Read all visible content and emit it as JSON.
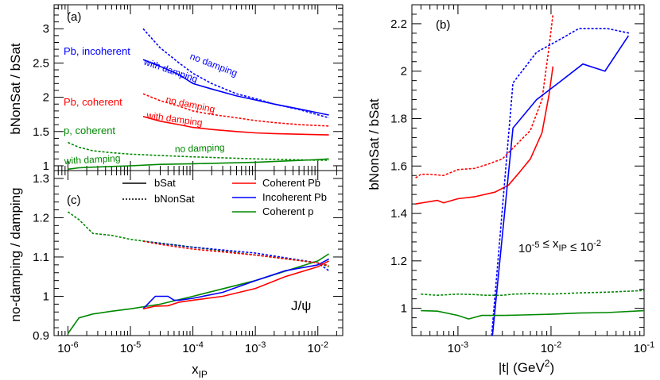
{
  "chart_data": [
    {
      "panel": "a",
      "type": "line",
      "panel_label": "(a)",
      "xlabel": "",
      "ylabel": "bNonSat / bSat",
      "xscale": "log",
      "xlim": [
        6e-07,
        0.025
      ],
      "ylim": [
        0.93,
        3.35
      ],
      "yticks": [
        1,
        1.5,
        2,
        2.5,
        3
      ],
      "ytick_labels": [
        "1",
        "1.5",
        "2",
        "2.5",
        "3"
      ],
      "grid": false,
      "series": [
        {
          "name": "Pb, incoherent - no damping",
          "color": "#0000ff",
          "dash": "dotted",
          "x": [
            1.6e-05,
            3e-05,
            6e-05,
            0.0001,
            0.0002,
            0.0005,
            0.001,
            0.002,
            0.005,
            0.015
          ],
          "y": [
            3.0,
            2.72,
            2.5,
            2.35,
            2.2,
            2.05,
            1.98,
            1.9,
            1.82,
            1.7
          ]
        },
        {
          "name": "Pb, incoherent - with damping",
          "color": "#0000ff",
          "dash": "solid",
          "x": [
            1.6e-05,
            3e-05,
            6e-05,
            0.0001,
            0.0002,
            0.0005,
            0.001,
            0.002,
            0.005,
            0.015
          ],
          "y": [
            2.55,
            2.45,
            2.33,
            2.2,
            2.12,
            2.02,
            1.96,
            1.9,
            1.83,
            1.74
          ]
        },
        {
          "name": "Pb, coherent - no damping",
          "color": "#ff0000",
          "dash": "dotted",
          "x": [
            1.6e-05,
            3e-05,
            6e-05,
            0.0001,
            0.0002,
            0.0005,
            0.001,
            0.002,
            0.005,
            0.015
          ],
          "y": [
            2.05,
            1.95,
            1.87,
            1.8,
            1.75,
            1.7,
            1.66,
            1.63,
            1.6,
            1.58
          ]
        },
        {
          "name": "Pb, coherent - with damping",
          "color": "#ff0000",
          "dash": "solid",
          "x": [
            1.6e-05,
            3e-05,
            6e-05,
            0.0001,
            0.0002,
            0.0005,
            0.001,
            0.002,
            0.005,
            0.015
          ],
          "y": [
            1.72,
            1.65,
            1.6,
            1.56,
            1.53,
            1.5,
            1.48,
            1.47,
            1.46,
            1.45
          ]
        },
        {
          "name": "p, coherent - no damping",
          "color": "#008800",
          "dash": "dotted",
          "x": [
            1e-06,
            1.5e-06,
            2.5e-06,
            5e-06,
            1e-05,
            3e-05,
            0.0001,
            0.001,
            0.01,
            0.015
          ],
          "y": [
            1.34,
            1.27,
            1.22,
            1.19,
            1.17,
            1.15,
            1.13,
            1.1,
            1.08,
            1.08
          ]
        },
        {
          "name": "p, coherent - with damping",
          "color": "#008800",
          "dash": "solid",
          "x": [
            1e-06,
            1.5e-06,
            2.5e-06,
            5e-06,
            1e-05,
            3e-05,
            0.0001,
            0.001,
            0.01,
            0.015
          ],
          "y": [
            0.95,
            0.97,
            0.98,
            0.99,
            1.0,
            1.02,
            1.03,
            1.05,
            1.09,
            1.1
          ]
        }
      ],
      "annotations": [
        {
          "text": "Pb, incoherent",
          "color": "#0000ff"
        },
        {
          "text": "no damping",
          "color": "#0000ff"
        },
        {
          "text": "with damping",
          "color": "#0000ff"
        },
        {
          "text": "Pb, coherent",
          "color": "#ff0000"
        },
        {
          "text": "no damping",
          "color": "#ff0000"
        },
        {
          "text": "with damping",
          "color": "#ff0000"
        },
        {
          "text": "p, coherent",
          "color": "#008800"
        },
        {
          "text": "no damping",
          "color": "#008800"
        },
        {
          "text": "with damping",
          "color": "#008800"
        }
      ]
    },
    {
      "panel": "c",
      "type": "line",
      "panel_label": "(c)",
      "xlabel": "xIP",
      "ylabel": "no-damping / damping",
      "xscale": "log",
      "xlim": [
        6e-07,
        0.025
      ],
      "ylim": [
        0.9,
        1.32
      ],
      "xticks": [
        1e-06,
        1e-05,
        0.0001,
        0.001,
        0.01
      ],
      "xtick_labels": [
        "10-6",
        "10-5",
        "10-4",
        "10-3",
        "10-2"
      ],
      "yticks": [
        0.9,
        1,
        1.1,
        1.2,
        1.3
      ],
      "ytick_labels": [
        "0.9",
        "1",
        "1.1",
        "1.2",
        "1.3"
      ],
      "grid": false,
      "legend": {
        "placement": "top",
        "entries": [
          {
            "label": "bSat",
            "color": "#000000",
            "dash": "solid"
          },
          {
            "label": "bNonSat",
            "color": "#000000",
            "dash": "dotted"
          },
          {
            "label": "Coherent Pb",
            "color": "#ff0000",
            "dash": "solid"
          },
          {
            "label": "Incoherent Pb",
            "color": "#0000ff",
            "dash": "solid"
          },
          {
            "label": "Coherent p",
            "color": "#008800",
            "dash": "solid"
          }
        ]
      },
      "series": [
        {
          "name": "Coherent p - bNonSat",
          "color": "#008800",
          "dash": "dotted",
          "x": [
            1e-06,
            1.5e-06,
            2.5e-06,
            5e-06,
            1e-05,
            3e-05,
            0.0001,
            0.001,
            0.01,
            0.015
          ],
          "y": [
            1.215,
            1.195,
            1.16,
            1.155,
            1.145,
            1.135,
            1.125,
            1.105,
            1.085,
            1.075
          ]
        },
        {
          "name": "Coherent p - bSat",
          "color": "#008800",
          "dash": "solid",
          "x": [
            1e-06,
            1.5e-06,
            2.5e-06,
            5e-06,
            1e-05,
            3e-05,
            0.0001,
            0.001,
            0.01,
            0.015
          ],
          "y": [
            0.905,
            0.945,
            0.955,
            0.962,
            0.968,
            0.98,
            1.0,
            1.04,
            1.09,
            1.108
          ]
        },
        {
          "name": "Incoherent Pb - bNonSat",
          "color": "#0000ff",
          "dash": "dotted",
          "x": [
            1.6e-05,
            3e-05,
            0.0001,
            0.001,
            0.01,
            0.015
          ],
          "y": [
            1.14,
            1.135,
            1.125,
            1.11,
            1.085,
            1.065
          ]
        },
        {
          "name": "Incoherent Pb - bSat",
          "color": "#0000ff",
          "dash": "solid",
          "x": [
            1.6e-05,
            2.5e-05,
            3.2e-05,
            4e-05,
            5e-05,
            6e-05,
            0.0001,
            0.0003,
            0.001,
            0.003,
            0.01,
            0.015
          ],
          "y": [
            0.968,
            1.0,
            1.0,
            1.0,
            0.99,
            0.99,
            0.995,
            1.01,
            1.04,
            1.065,
            1.08,
            1.095
          ]
        },
        {
          "name": "Coherent Pb - bNonSat",
          "color": "#ff0000",
          "dash": "dotted",
          "x": [
            1.6e-05,
            3e-05,
            0.0001,
            0.001,
            0.01,
            0.015
          ],
          "y": [
            1.14,
            1.132,
            1.12,
            1.105,
            1.085,
            1.078
          ]
        },
        {
          "name": "Coherent Pb - bSat",
          "color": "#ff0000",
          "dash": "solid",
          "x": [
            1.6e-05,
            2.5e-05,
            4e-05,
            6e-05,
            0.0001,
            0.0003,
            0.001,
            0.003,
            0.01,
            0.015
          ],
          "y": [
            0.968,
            0.975,
            0.976,
            0.985,
            0.99,
            1.0,
            1.02,
            1.05,
            1.075,
            1.09
          ]
        }
      ],
      "annotations": [
        {
          "text": "J/ψ",
          "color": "#000000"
        }
      ]
    },
    {
      "panel": "b",
      "type": "line",
      "panel_label": "(b)",
      "xlabel": "|t| (GeV2)",
      "ylabel": "bNonSat / bSat",
      "xscale": "log",
      "xlim": [
        0.00032,
        0.1
      ],
      "ylim": [
        0.885,
        2.28
      ],
      "xticks": [
        0.001,
        0.01,
        0.1
      ],
      "xtick_labels": [
        "10-3",
        "10-2",
        "10-1"
      ],
      "yticks": [
        1,
        1.2,
        1.4,
        1.6,
        1.8,
        2,
        2.2
      ],
      "ytick_labels": [
        "1",
        "1.2",
        "1.4",
        "1.6",
        "1.8",
        "2",
        "2.2"
      ],
      "grid": false,
      "series": [
        {
          "name": "Coherent Pb - bNonSat",
          "color": "#ff0000",
          "dash": "dotted",
          "x": [
            0.00035,
            0.0004,
            0.0005,
            0.0007,
            0.001,
            0.0015,
            0.002,
            0.003,
            0.004,
            0.006,
            0.008,
            0.0095,
            0.0105
          ],
          "y": [
            1.55,
            1.565,
            1.565,
            1.56,
            1.585,
            1.59,
            1.605,
            1.63,
            1.68,
            1.75,
            1.88,
            2.1,
            2.24
          ]
        },
        {
          "name": "Coherent Pb - bSat",
          "color": "#ff0000",
          "dash": "solid",
          "x": [
            0.00035,
            0.0005,
            0.0006,
            0.0007,
            0.001,
            0.0015,
            0.0025,
            0.0035,
            0.0045,
            0.006,
            0.008,
            0.0095,
            0.0105
          ],
          "y": [
            1.44,
            1.45,
            1.455,
            1.445,
            1.462,
            1.47,
            1.49,
            1.52,
            1.57,
            1.63,
            1.74,
            1.9,
            2.02
          ]
        },
        {
          "name": "Incoherent Pb - bNonSat",
          "color": "#0000ff",
          "dash": "dotted",
          "x": [
            0.0023,
            0.0039,
            0.007,
            0.012,
            0.02,
            0.04,
            0.07
          ],
          "y": [
            0.885,
            1.95,
            2.08,
            2.13,
            2.18,
            2.18,
            2.16
          ]
        },
        {
          "name": "Incoherent Pb - bSat",
          "color": "#0000ff",
          "dash": "solid",
          "x": [
            0.00235,
            0.0039,
            0.007,
            0.012,
            0.022,
            0.038,
            0.068
          ],
          "y": [
            0.885,
            1.76,
            1.88,
            1.95,
            2.03,
            2.0,
            2.15
          ]
        },
        {
          "name": "Coherent p - bNonSat",
          "color": "#008800",
          "dash": "dotted",
          "x": [
            0.0004,
            0.0006,
            0.001,
            0.0015,
            0.002,
            0.003,
            0.004,
            0.006,
            0.01,
            0.02,
            0.04,
            0.1
          ],
          "y": [
            1.06,
            1.055,
            1.06,
            1.058,
            1.055,
            1.055,
            1.06,
            1.062,
            1.06,
            1.065,
            1.068,
            1.075
          ]
        },
        {
          "name": "Coherent p - bSat",
          "color": "#008800",
          "dash": "solid",
          "x": [
            0.0004,
            0.0006,
            0.001,
            0.0013,
            0.0018,
            0.003,
            0.005,
            0.01,
            0.02,
            0.04,
            0.1
          ],
          "y": [
            0.99,
            0.988,
            0.97,
            0.955,
            0.97,
            0.97,
            0.972,
            0.975,
            0.98,
            0.982,
            0.99
          ]
        }
      ],
      "annotations": [
        {
          "text": "10-5 ≤ xIP ≤ 10-2",
          "color": "#000000"
        }
      ]
    }
  ]
}
